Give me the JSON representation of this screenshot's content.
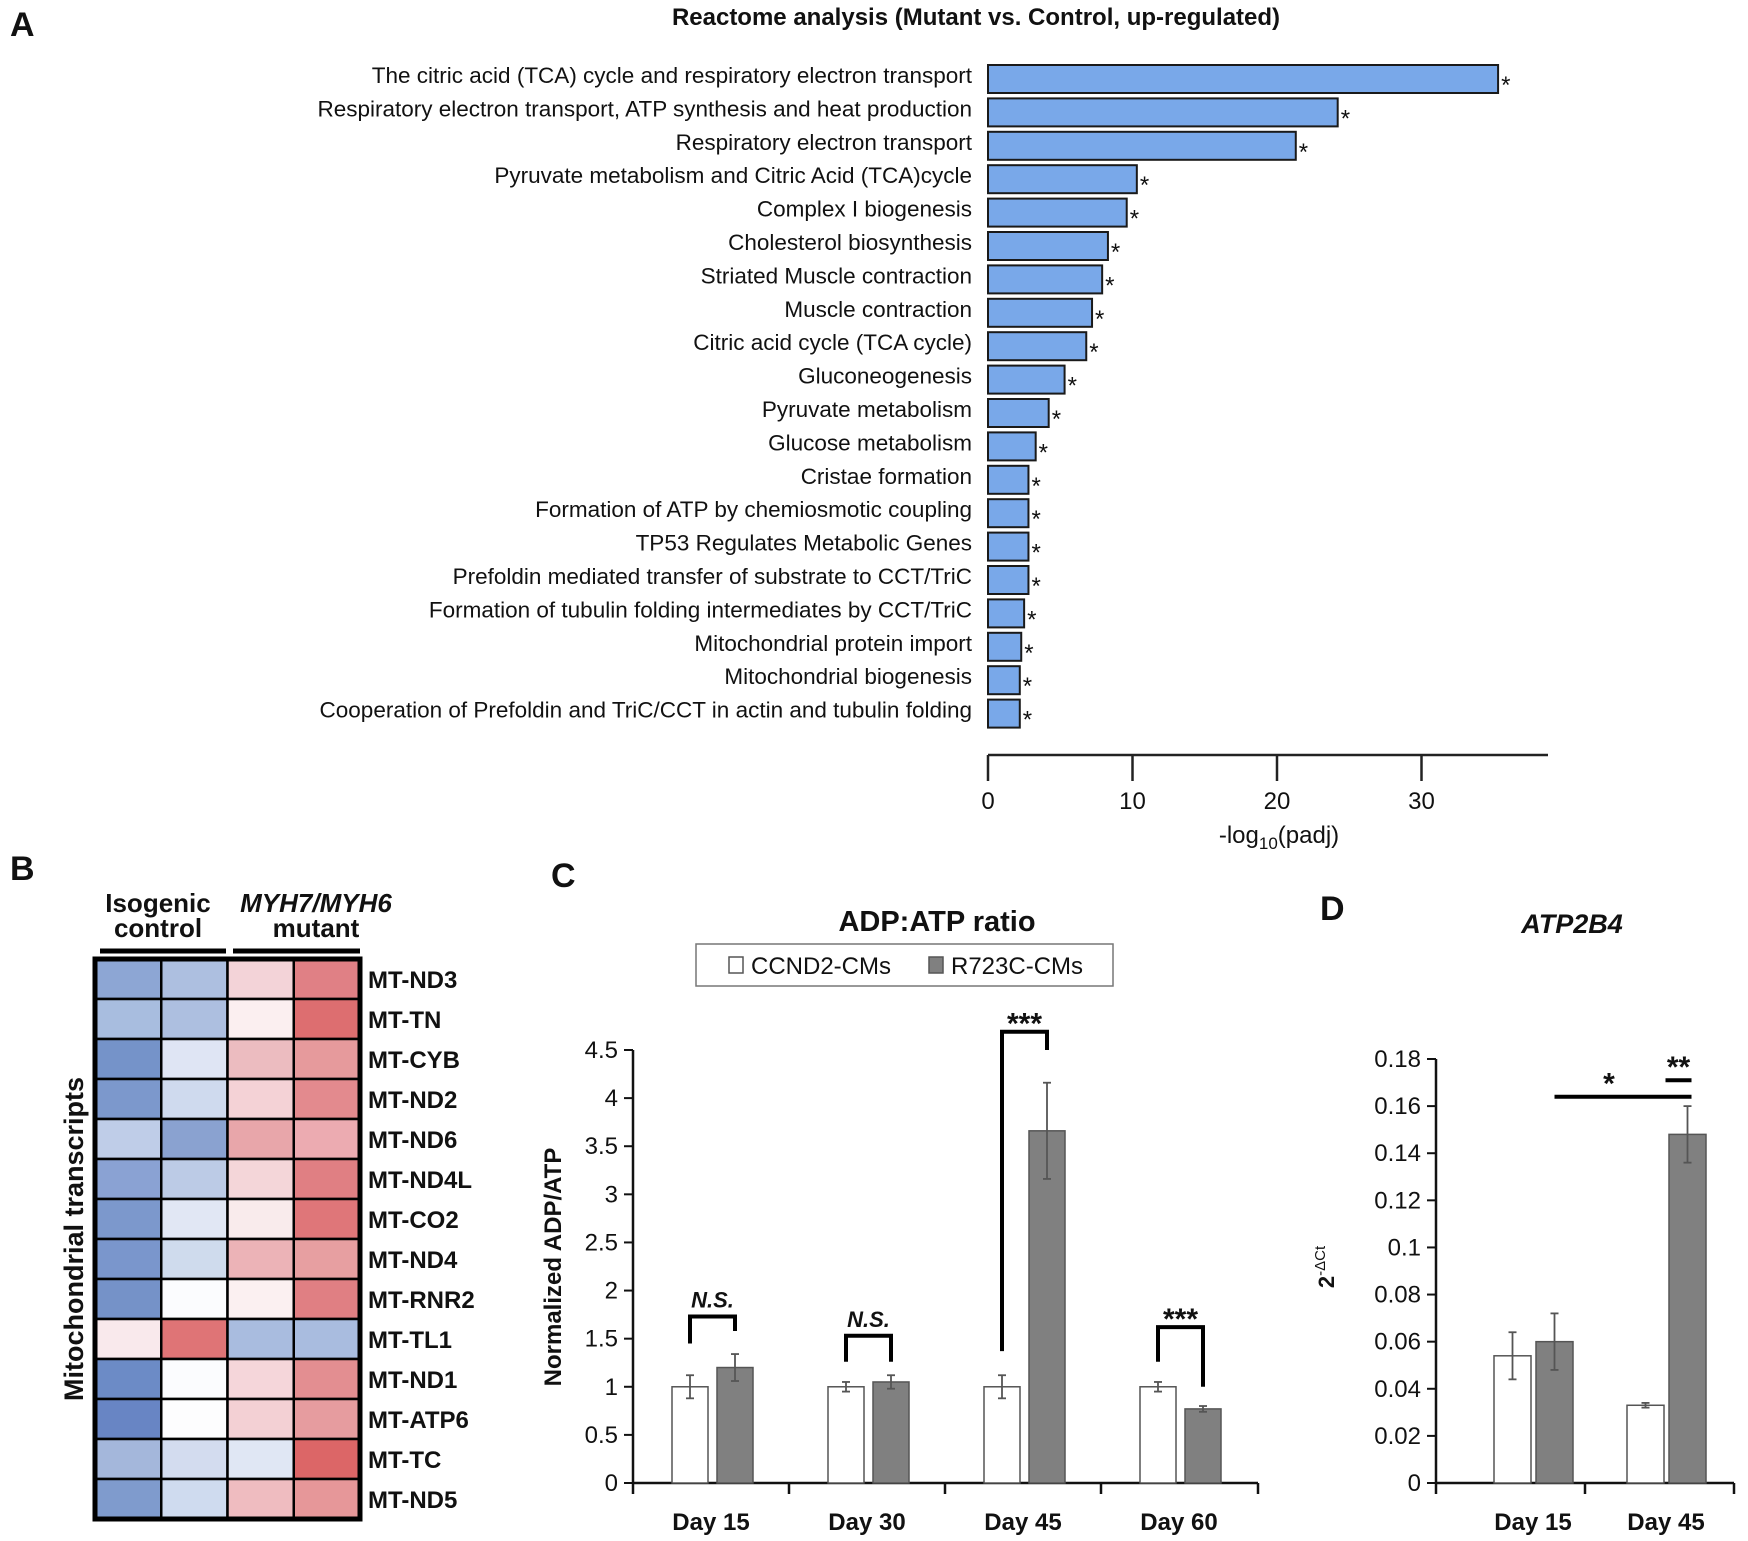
{
  "panel_labels": {
    "a": "A",
    "b": "B",
    "c": "C",
    "d": "D"
  },
  "chart_data": [
    {
      "type": "bar",
      "orientation": "horizontal",
      "title": "Reactome analysis (Mutant vs. Control, up-regulated)",
      "categories": [
        "The citric acid (TCA) cycle and respiratory electron transport",
        "Respiratory electron transport, ATP synthesis and heat production",
        "Respiratory electron transport",
        "Pyruvate metabolism and Citric Acid (TCA)cycle",
        "Complex I biogenesis",
        "Cholesterol biosynthesis",
        "Striated Muscle contraction",
        "Muscle contraction",
        "Citric acid cycle (TCA cycle)",
        "Gluconeogenesis",
        "Pyruvate metabolism",
        "Glucose metabolism",
        "Cristae formation",
        "Formation of ATP by chemiosmotic coupling",
        "TP53 Regulates Metabolic Genes",
        "Prefoldin mediated transfer of substrate  to CCT/TriC",
        "Formation of tubulin folding intermediates by CCT/TriC",
        "Mitochondrial protein import",
        "Mitochondrial biogenesis",
        "Cooperation  of Prefoldin and TriC/CCT  in actin and tubulin folding"
      ],
      "values": [
        35.3,
        24.2,
        21.3,
        10.3,
        9.6,
        8.3,
        7.9,
        7.2,
        6.8,
        5.3,
        4.2,
        3.3,
        2.8,
        2.8,
        2.8,
        2.8,
        2.5,
        2.3,
        2.2,
        2.2
      ],
      "significance_marker": "*",
      "xlabel": {
        "main": "-log",
        "sub": "10",
        "rest": "(padj)"
      },
      "xlim": [
        0,
        39
      ],
      "xticks": [
        0,
        10,
        20,
        30
      ],
      "xtick_labels": [
        "0",
        "10",
        "20",
        "30"
      ],
      "bar_color": "#79a8e9"
    },
    {
      "type": "heatmap",
      "column_groups": [
        {
          "line1": "Isogenic",
          "line2": "control"
        },
        {
          "line1": "MYH7/MYH6",
          "line2": "mutant"
        }
      ],
      "ylabel": "Mitochondrial transcripts",
      "rows": [
        "MT-ND3",
        "MT-TN",
        "MT-CYB",
        "MT-ND2",
        "MT-ND6",
        "MT-ND4L",
        "MT-CO2",
        "MT-ND4",
        "MT-RNR2",
        "MT-TL1",
        "MT-ND1",
        "MT-ATP6",
        "MT-TC",
        "MT-ND5"
      ],
      "cell_colors": [
        [
          "#8da6d4",
          "#adbfe0",
          "#f3d3d8",
          "#e08085"
        ],
        [
          "#a8bddf",
          "#adbfe0",
          "#fbeff0",
          "#dd6e70"
        ],
        [
          "#7593c9",
          "#dfe5f4",
          "#ecbcc0",
          "#e69a9c"
        ],
        [
          "#7c98cc",
          "#cfdaee",
          "#f4d2d6",
          "#e38a8e"
        ],
        [
          "#bfcde8",
          "#8aa2d0",
          "#e8a6aa",
          "#ecabb1"
        ],
        [
          "#8aa2d3",
          "#bccbe6",
          "#f4d6d9",
          "#e07f83"
        ],
        [
          "#7c98cc",
          "#e1e7f4",
          "#f9ebec",
          "#df7679"
        ],
        [
          "#7a96cc",
          "#cfdbed",
          "#ecb3b7",
          "#e79fa1"
        ],
        [
          "#7592c8",
          "#fbfcfe",
          "#fbf0f1",
          "#e07f83"
        ],
        [
          "#f9e9ec",
          "#df7476",
          "#a9bcdf",
          "#a9bcdf"
        ],
        [
          "#6c8bc6",
          "#fbfcfe",
          "#f5d6da",
          "#e38e91"
        ],
        [
          "#6885c4",
          "#fdfdfe",
          "#f3d0d4",
          "#e69c9f"
        ],
        [
          "#a4b7db",
          "#d3dcef",
          "#e0e7f4",
          "#dc6667"
        ],
        [
          "#7f9bcd",
          "#cfdbef",
          "#efbcc0",
          "#e69799"
        ]
      ]
    },
    {
      "type": "bar",
      "title": "ADP:ATP ratio",
      "categories": [
        "Day 15",
        "Day 30",
        "Day 45",
        "Day 60"
      ],
      "series": [
        {
          "name": "CCND2-CMs",
          "values": [
            1.0,
            1.0,
            1.0,
            1.0
          ],
          "errors": [
            0.12,
            0.05,
            0.12,
            0.05
          ],
          "color": "#ffffff"
        },
        {
          "name": "R723C-CMs",
          "values": [
            1.2,
            1.05,
            3.66,
            0.77
          ],
          "errors": [
            0.14,
            0.07,
            0.5,
            0.03
          ],
          "color": "#808080"
        }
      ],
      "ylabel": "Normalized ADP/ATP",
      "ylim": [
        0,
        4.5
      ],
      "yticks": [
        0,
        0.5,
        1,
        1.5,
        2,
        2.5,
        3,
        3.5,
        4,
        4.5
      ],
      "ytick_labels": [
        "0",
        "0.5",
        "1",
        "1.5",
        "2",
        "2.5",
        "3",
        "3.5",
        "4",
        "4.5"
      ],
      "legend": "top",
      "annotations": [
        {
          "group": 0,
          "label": "N.S.",
          "top": 1.73,
          "left_end": 1.45,
          "right_end": 1.58
        },
        {
          "group": 1,
          "label": "N.S.",
          "top": 1.53,
          "left_end": 1.26,
          "right_end": 1.26
        },
        {
          "group": 2,
          "label": "***",
          "top": 4.69,
          "left_end": 1.37,
          "right_end": 4.5
        },
        {
          "group": 3,
          "label": "***",
          "top": 1.62,
          "left_end": 1.26,
          "right_end": 1.0
        }
      ]
    },
    {
      "type": "bar",
      "title": "ATP2B4",
      "categories": [
        "Day 15",
        "Day 45"
      ],
      "series": [
        {
          "name": "CCND2-CMs",
          "values": [
            0.054,
            0.033
          ],
          "errors": [
            0.01,
            0.001
          ],
          "color": "#ffffff"
        },
        {
          "name": "R723C-CMs",
          "values": [
            0.06,
            0.148
          ],
          "errors": [
            0.012,
            0.012
          ],
          "color": "#808080"
        }
      ],
      "ylabel": {
        "base": "2",
        "sup": "-ΔCt"
      },
      "ylim": [
        0,
        0.18
      ],
      "yticks": [
        0,
        0.02,
        0.04,
        0.06,
        0.08,
        0.1,
        0.12,
        0.14,
        0.16,
        0.18
      ],
      "ytick_labels": [
        "0",
        "0.02",
        "0.04",
        "0.06",
        "0.08",
        "0.1",
        "0.12",
        "0.14",
        "0.16",
        "0.18"
      ],
      "annotations": [
        {
          "label": "*",
          "from": "Day 15 R723C-CMs",
          "to": "Day 45 R723C-CMs",
          "y": 0.164
        },
        {
          "label": "**",
          "from": "Day 45 CCND2-CMs",
          "to": "Day 45 R723C-CMs",
          "y": 0.171
        }
      ]
    }
  ]
}
